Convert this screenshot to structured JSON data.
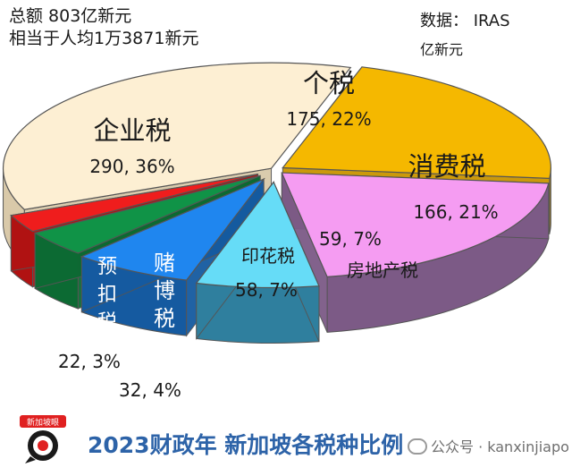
{
  "notes": {
    "total": "总额 803亿新元",
    "per_capita": "相当于人均1万3871新元",
    "source": "数据：  IRAS",
    "unit": "亿新元"
  },
  "title": "2023财政年 新加坡各税种比例",
  "logo_text": "新加坡眼",
  "watermark": "公众号 · kanxinjiapo",
  "chart_data": {
    "type": "pie",
    "style": "3d-exploded",
    "unit": "亿新元",
    "total": 803,
    "slices": [
      {
        "label": "个税",
        "value": 175,
        "percent": 22,
        "value_label": "175, 22%",
        "color": "#f5b800",
        "side": "#c99400"
      },
      {
        "label": "消费税",
        "value": 166,
        "percent": 21,
        "value_label": "166, 21%",
        "color": "#f59cf2",
        "side": "#7c5a86"
      },
      {
        "label": "房地产税",
        "value": 59,
        "percent": 7,
        "value_label": "59, 7%",
        "color": "#66dcf7",
        "side": "#2f7f9e"
      },
      {
        "label": "印花税",
        "value": 58,
        "percent": 7,
        "value_label": "58, 7%",
        "color": "#1f86ef",
        "side": "#155aa0"
      },
      {
        "label": "赌博税",
        "value": 32,
        "percent": 4,
        "value_label": "32, 4%",
        "color": "#109347",
        "side": "#0c6a33"
      },
      {
        "label": "预扣税",
        "value": 22,
        "percent": 3,
        "value_label": "22, 3%",
        "color": "#ef1d1d",
        "side": "#b01212"
      },
      {
        "label": "企业税",
        "value": 290,
        "percent": 36,
        "value_label": "290, 36%",
        "color": "#fdefd3",
        "side": "#d9c9a9"
      }
    ]
  }
}
